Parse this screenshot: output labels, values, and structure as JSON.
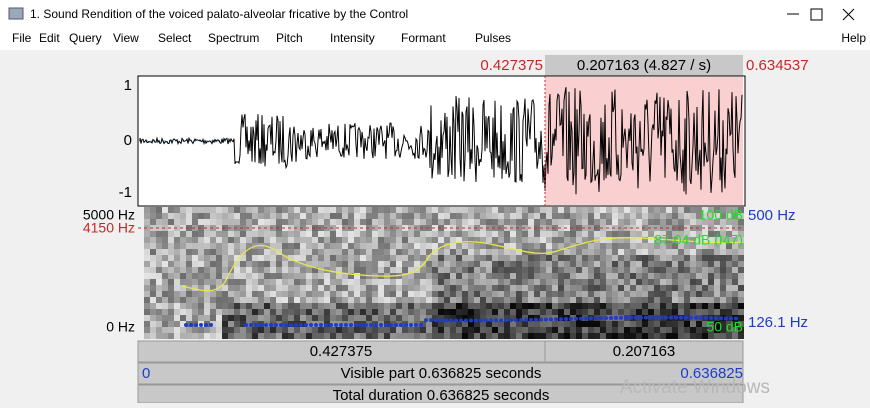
{
  "window": {
    "title": "1. Sound Rendition of the voiced palato-alveolar fricative by the Control"
  },
  "menu": {
    "items": [
      "File",
      "Edit",
      "Query",
      "View",
      "Select",
      "Spectrum",
      "Pitch",
      "Intensity",
      "Formant",
      "Pulses"
    ],
    "help": "Help"
  },
  "selection": {
    "start": "0.427375",
    "duration": "0.207163 (4.827 / s)",
    "end": "0.634537"
  },
  "waveform": {
    "y_labels": [
      "1",
      "0",
      "-1"
    ]
  },
  "spectrogram": {
    "freq_top": "5000 Hz",
    "cursor_freq": "4150 Hz",
    "freq_bottom": "0 Hz",
    "intensity_top": "100 dB",
    "intensity_cursor": "87.04 dB (I47)",
    "intensity_bottom": "50 dB",
    "pitch_top": "500 Hz",
    "pitch_bottom": "126.1 Hz"
  },
  "time_bar": {
    "before": "0.427375",
    "selection": "0.207163"
  },
  "visible": {
    "start": "0",
    "label": "Visible part 0.636825 seconds",
    "end": "0.636825"
  },
  "total": {
    "label": "Total duration 0.636825 seconds"
  },
  "watermark": "Activate Windows"
}
